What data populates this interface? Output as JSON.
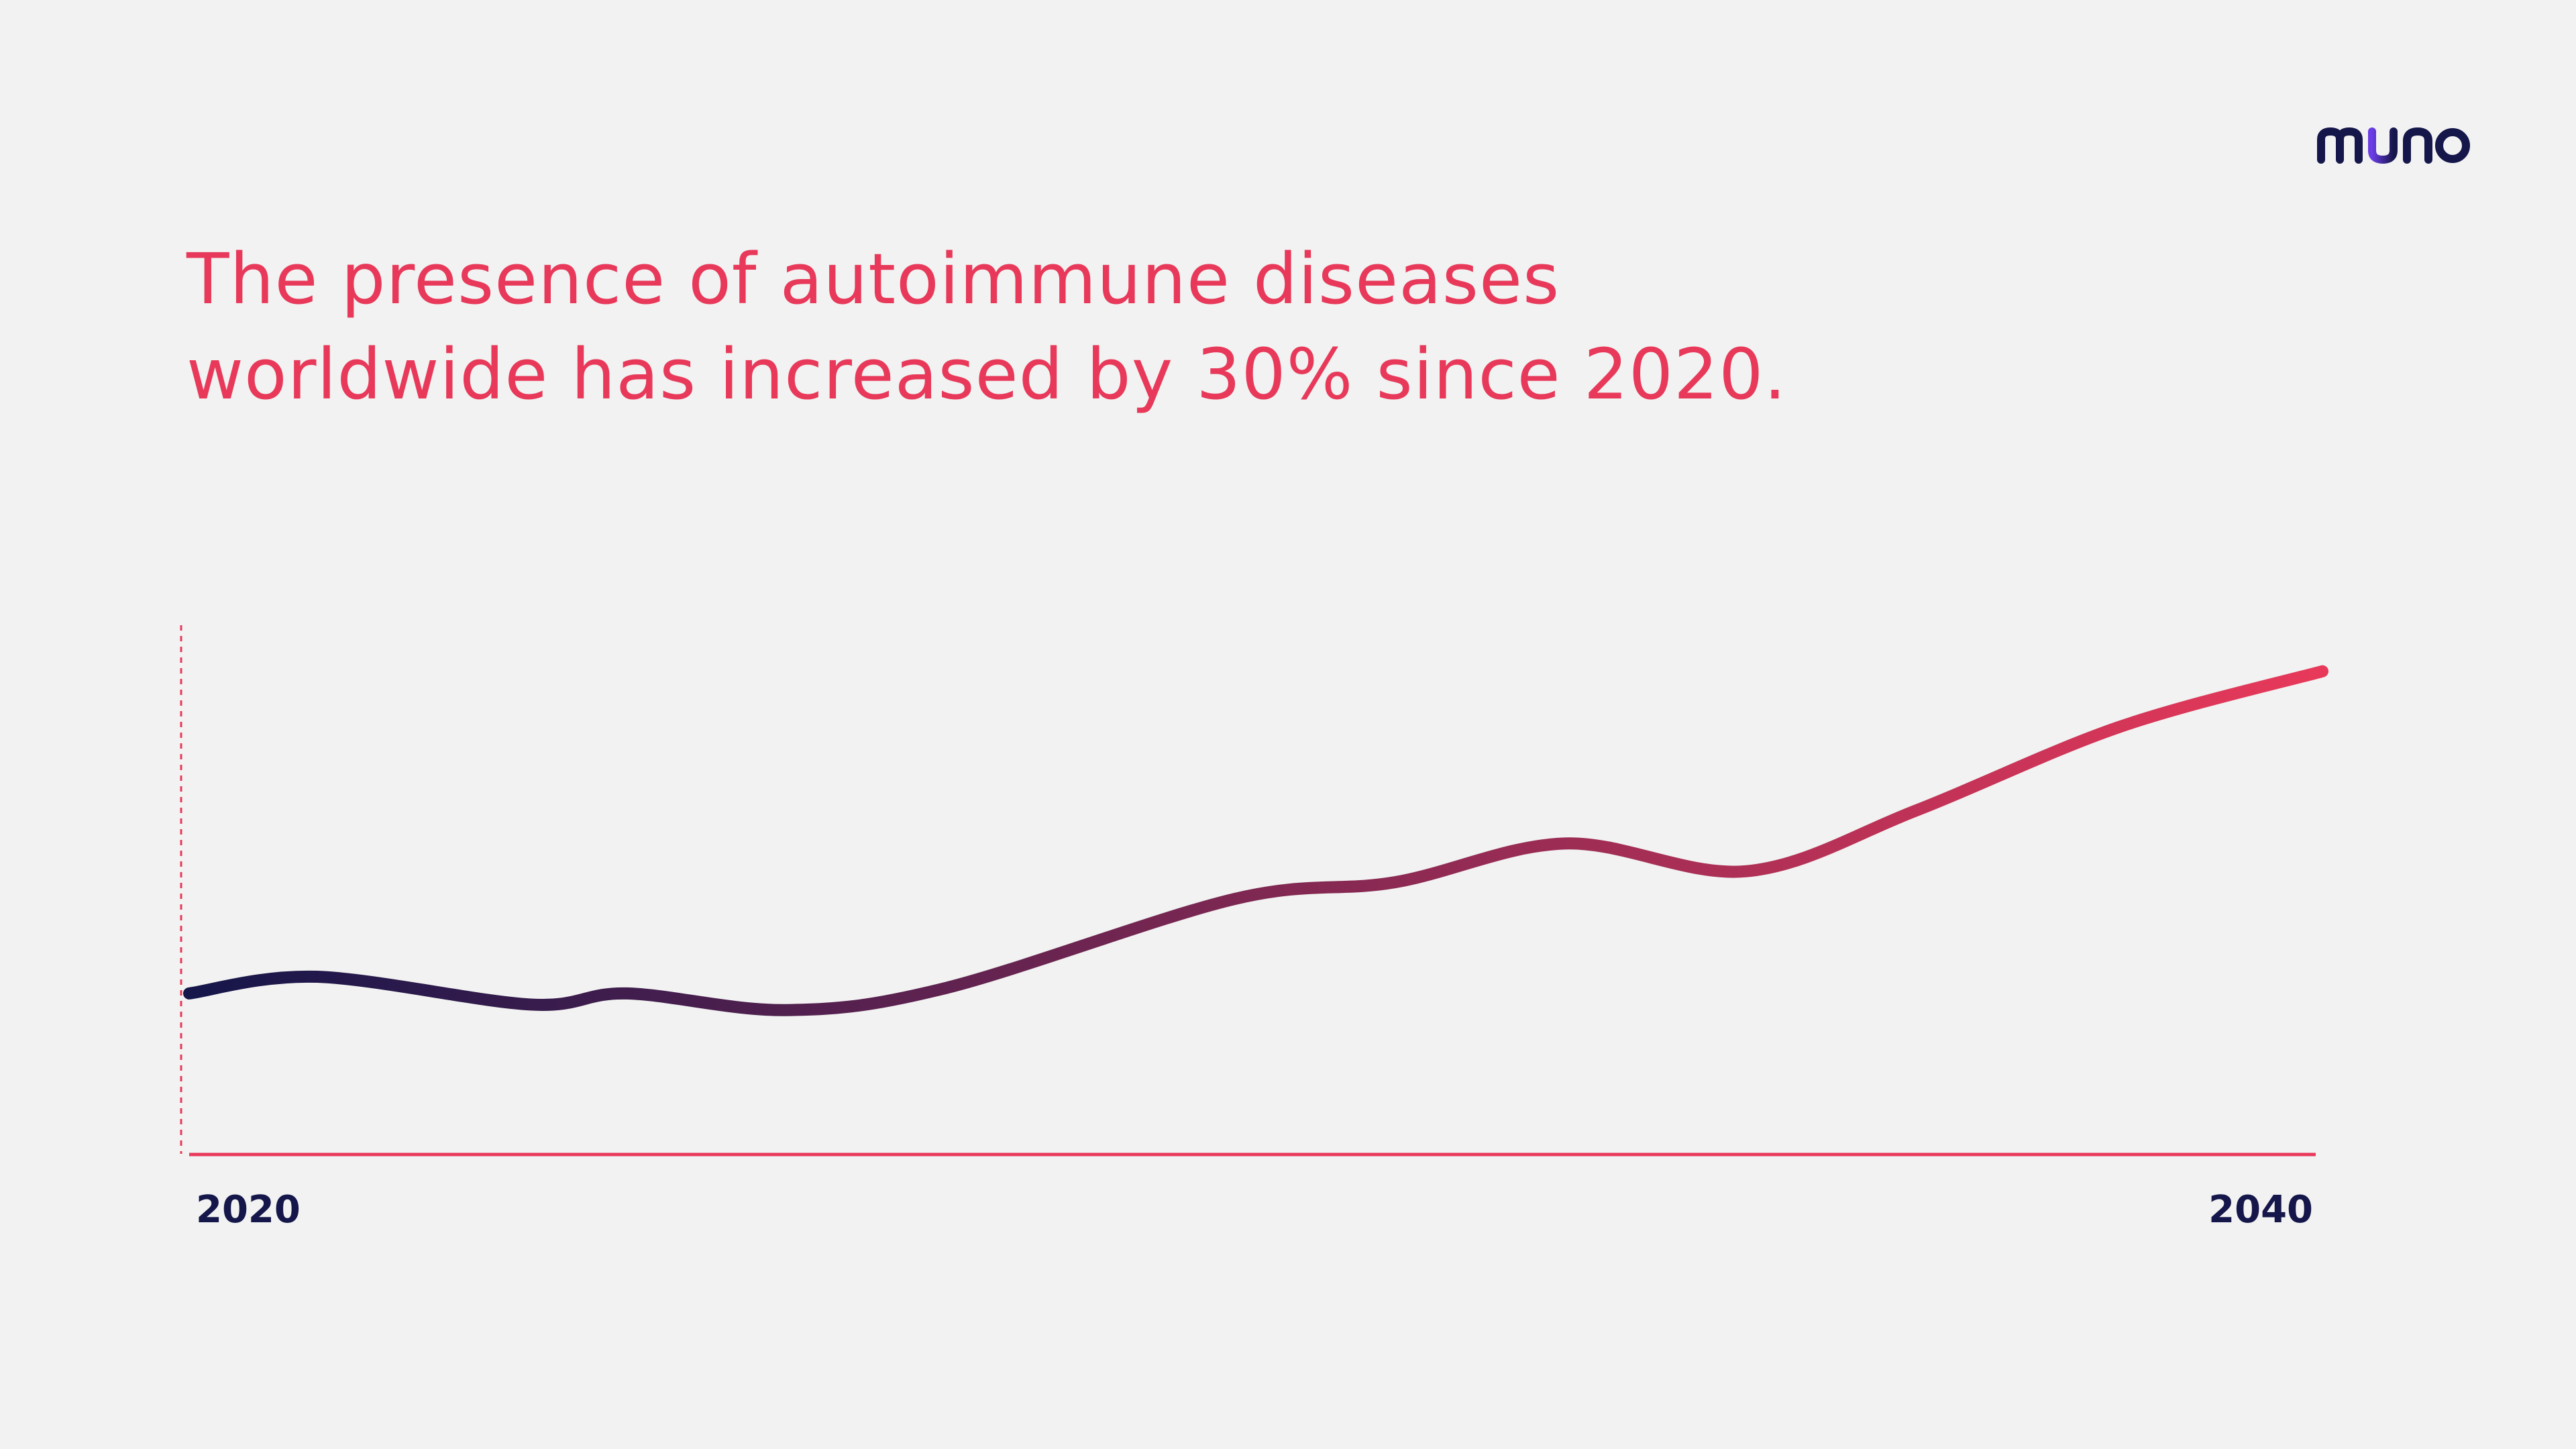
{
  "brand": {
    "logo_text": "muno",
    "colors": {
      "navy": "#15164a",
      "purple": "#6b3de6",
      "pink": "#e8395a"
    }
  },
  "headline": {
    "line1": "The presence of autoimmune diseases",
    "line2": "worldwide has increased by 30% since 2020."
  },
  "chart_data": {
    "type": "line",
    "title": "",
    "xlabel": "",
    "ylabel": "",
    "x_ticks": [
      "2020",
      "2040"
    ],
    "xlim": [
      2020,
      2040
    ],
    "ylim": [
      0,
      100
    ],
    "y_axis_visible": false,
    "grid": false,
    "legend": "none",
    "line_gradient": [
      "#15164a",
      "#e8395a"
    ],
    "series": [
      {
        "x": [
          2020,
          2021.2,
          2023.2,
          2024.1,
          2025.6,
          2027.1,
          2029.8,
          2031.3,
          2032.9,
          2034.6,
          2036.2,
          2038.1,
          2040
        ],
        "y": [
          29,
          32,
          27,
          29,
          26,
          30,
          46,
          49,
          56,
          51,
          62,
          77,
          87
        ]
      }
    ]
  }
}
